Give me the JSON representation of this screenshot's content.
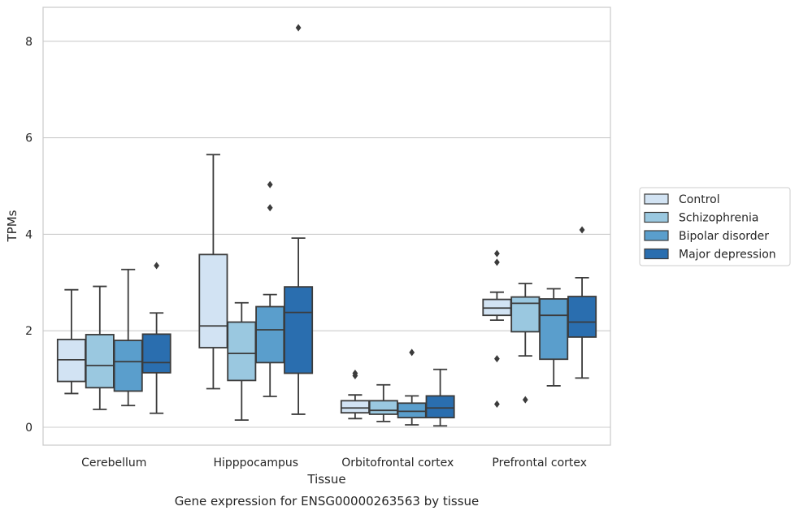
{
  "chart_data": {
    "type": "boxplot",
    "caption": "Gene expression for ENSG00000263563 by tissue",
    "xlabel": "Tissue",
    "ylabel": "TPMs",
    "ylim": [
      -0.35,
      8.7
    ],
    "yticks": [
      0,
      2,
      4,
      6,
      8
    ],
    "grid": true,
    "legend_position": "right",
    "categories": [
      "Cerebellum",
      "Hipppocampus",
      "Orbitofrontal cortex",
      "Prefrontal cortex"
    ],
    "series": [
      {
        "name": "Control",
        "color": "#d2e3f3",
        "boxes": [
          {
            "whislo": 0.7,
            "q1": 0.95,
            "med": 1.4,
            "q3": 1.82,
            "whishi": 2.85,
            "fliers": []
          },
          {
            "whislo": 0.8,
            "q1": 1.65,
            "med": 2.1,
            "q3": 3.58,
            "whishi": 5.65,
            "fliers": []
          },
          {
            "whislo": 0.18,
            "q1": 0.3,
            "med": 0.4,
            "q3": 0.55,
            "whishi": 0.67,
            "fliers": [
              1.07,
              1.12
            ]
          },
          {
            "whislo": 2.22,
            "q1": 2.32,
            "med": 2.47,
            "q3": 2.65,
            "whishi": 2.8,
            "fliers": [
              3.6,
              3.42,
              1.42,
              0.48
            ]
          }
        ]
      },
      {
        "name": "Schizophrenia",
        "color": "#9ac8e0",
        "boxes": [
          {
            "whislo": 0.37,
            "q1": 0.82,
            "med": 1.28,
            "q3": 1.92,
            "whishi": 2.92,
            "fliers": []
          },
          {
            "whislo": 0.15,
            "q1": 0.97,
            "med": 1.53,
            "q3": 2.18,
            "whishi": 2.58,
            "fliers": []
          },
          {
            "whislo": 0.12,
            "q1": 0.27,
            "med": 0.35,
            "q3": 0.55,
            "whishi": 0.88,
            "fliers": []
          },
          {
            "whislo": 1.48,
            "q1": 1.98,
            "med": 2.57,
            "q3": 2.7,
            "whishi": 2.98,
            "fliers": [
              0.57
            ]
          }
        ]
      },
      {
        "name": "Bipolar disorder",
        "color": "#5a9ecc",
        "boxes": [
          {
            "whislo": 0.45,
            "q1": 0.75,
            "med": 1.36,
            "q3": 1.8,
            "whishi": 3.27,
            "fliers": []
          },
          {
            "whislo": 0.64,
            "q1": 1.34,
            "med": 2.02,
            "q3": 2.5,
            "whishi": 2.75,
            "fliers": [
              5.03,
              4.55
            ]
          },
          {
            "whislo": 0.05,
            "q1": 0.2,
            "med": 0.33,
            "q3": 0.5,
            "whishi": 0.65,
            "fliers": [
              1.55
            ]
          },
          {
            "whislo": 0.86,
            "q1": 1.41,
            "med": 2.32,
            "q3": 2.66,
            "whishi": 2.87,
            "fliers": []
          }
        ]
      },
      {
        "name": "Major depression",
        "color": "#2a6eaf",
        "boxes": [
          {
            "whislo": 0.29,
            "q1": 1.13,
            "med": 1.34,
            "q3": 1.93,
            "whishi": 2.37,
            "fliers": [
              3.35
            ]
          },
          {
            "whislo": 0.27,
            "q1": 1.12,
            "med": 2.38,
            "q3": 2.91,
            "whishi": 3.92,
            "fliers": [
              8.28
            ]
          },
          {
            "whislo": 0.03,
            "q1": 0.2,
            "med": 0.4,
            "q3": 0.65,
            "whishi": 1.2,
            "fliers": []
          },
          {
            "whislo": 1.02,
            "q1": 1.87,
            "med": 2.18,
            "q3": 2.71,
            "whishi": 3.1,
            "fliers": [
              4.09
            ]
          }
        ]
      }
    ]
  }
}
